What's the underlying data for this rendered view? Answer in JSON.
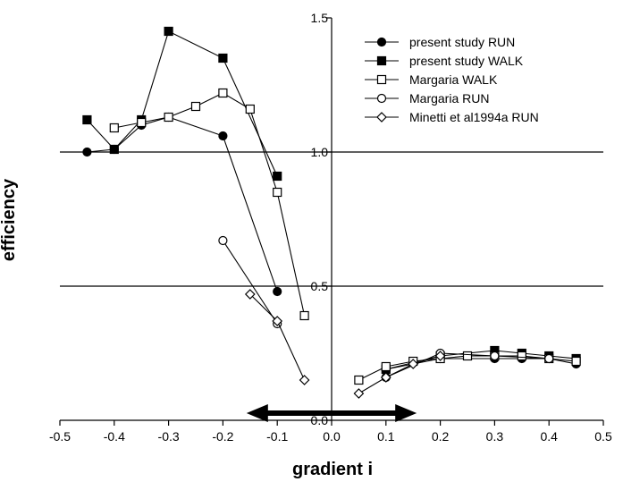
{
  "chart_data": {
    "type": "line",
    "xlabel": "gradient i",
    "ylabel": "efficiency",
    "xlim": [
      -0.5,
      0.5
    ],
    "ylim": [
      0,
      1.5
    ],
    "x_ticks": [
      "-0.5",
      "-0.4",
      "-0.3",
      "-0.2",
      "-0.1",
      "0.0",
      "0.1",
      "0.2",
      "0.3",
      "0.4",
      "0.5"
    ],
    "y_ticks": [
      "0.0",
      "0.5",
      "1.0",
      "1.5"
    ],
    "reference_lines_y": [
      0.5,
      1.0
    ],
    "annotation": {
      "type": "double-arrow",
      "from_x": -0.15,
      "to_x": 0.15
    },
    "legend_position": "top-right",
    "series": [
      {
        "name": "present study RUN",
        "marker": "filled-circle",
        "segments": [
          [
            [
              -0.45,
              1.0
            ],
            [
              -0.4,
              1.01
            ],
            [
              -0.35,
              1.1
            ],
            [
              -0.3,
              1.13
            ],
            [
              -0.2,
              1.06
            ],
            [
              -0.1,
              0.48
            ]
          ],
          [
            [
              0.1,
              0.19
            ],
            [
              0.2,
              0.23
            ],
            [
              0.3,
              0.23
            ],
            [
              0.35,
              0.23
            ],
            [
              0.4,
              0.23
            ],
            [
              0.45,
              0.21
            ]
          ]
        ]
      },
      {
        "name": "present study WALK",
        "marker": "filled-square",
        "segments": [
          [
            [
              -0.45,
              1.12
            ],
            [
              -0.4,
              1.01
            ],
            [
              -0.35,
              1.12
            ],
            [
              -0.3,
              1.45
            ],
            [
              -0.2,
              1.35
            ],
            [
              -0.1,
              0.91
            ]
          ],
          [
            [
              0.1,
              0.19
            ],
            [
              0.2,
              0.24
            ],
            [
              0.3,
              0.26
            ],
            [
              0.35,
              0.25
            ],
            [
              0.4,
              0.24
            ],
            [
              0.45,
              0.23
            ]
          ]
        ]
      },
      {
        "name": "Margaria WALK",
        "marker": "open-square",
        "segments": [
          [
            [
              -0.4,
              1.09
            ],
            [
              -0.35,
              1.11
            ],
            [
              -0.3,
              1.13
            ],
            [
              -0.25,
              1.17
            ],
            [
              -0.2,
              1.22
            ],
            [
              -0.15,
              1.16
            ],
            [
              -0.1,
              0.85
            ],
            [
              -0.05,
              0.39
            ]
          ],
          [
            [
              0.05,
              0.15
            ],
            [
              0.1,
              0.2
            ],
            [
              0.15,
              0.22
            ],
            [
              0.2,
              0.23
            ],
            [
              0.25,
              0.24
            ],
            [
              0.3,
              0.24
            ],
            [
              0.35,
              0.24
            ],
            [
              0.4,
              0.23
            ],
            [
              0.45,
              0.22
            ]
          ]
        ]
      },
      {
        "name": "Margaria RUN",
        "marker": "open-circle",
        "segments": [
          [
            [
              -0.2,
              0.67
            ],
            [
              -0.1,
              0.36
            ]
          ],
          [
            [
              0.1,
              0.16
            ],
            [
              0.2,
              0.25
            ],
            [
              0.3,
              0.24
            ],
            [
              0.4,
              0.23
            ]
          ]
        ]
      },
      {
        "name": "Minetti et al1994a RUN",
        "marker": "open-diamond",
        "segments": [
          [
            [
              -0.15,
              0.47
            ],
            [
              -0.1,
              0.37
            ],
            [
              -0.05,
              0.15
            ]
          ],
          [
            [
              0.05,
              0.1
            ],
            [
              0.1,
              0.16
            ],
            [
              0.15,
              0.21
            ],
            [
              0.2,
              0.24
            ]
          ]
        ]
      }
    ]
  }
}
